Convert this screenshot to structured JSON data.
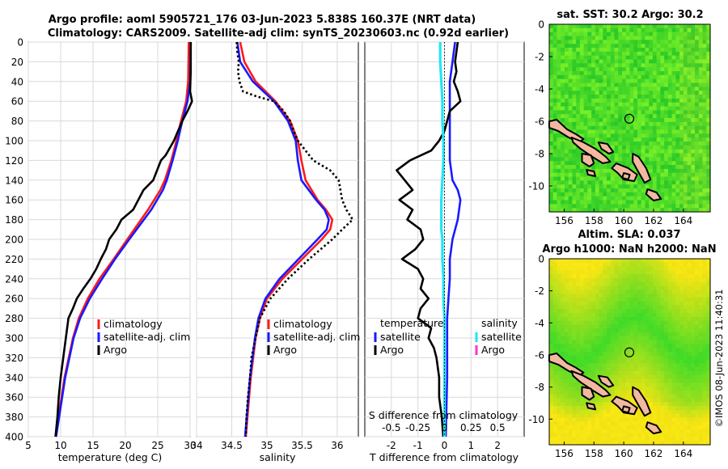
{
  "title": {
    "line1": "Argo profile: aoml 5905721_176 03-Jun-2023 5.838S 160.37E (NRT data)",
    "line2": "Climatology: CARS2009. Satellite-adj clim: synTS_20230603.nc (0.92d earlier)"
  },
  "colors": {
    "climatology": "#ff1a1a",
    "satellite": "#1a1aff",
    "argo": "#000000",
    "sat_salinity": "#22e5f5",
    "argo_salinity": "#ff33cc",
    "land": "#f2b8a0"
  },
  "legend": {
    "climatology": "climatology",
    "satellite": "satellite-adj. clim",
    "argo": "Argo",
    "temperature": "temperature",
    "salinity": "salinity",
    "sat_short": "satellite"
  },
  "map1": {
    "title": "sat. SST: 30.2 Argo: 30.2"
  },
  "map2": {
    "title1": "Altim. SLA: 0.037",
    "title2": "Argo h1000: NaN h2000: NaN"
  },
  "watermark": "©IMOS 08-Jun-2023 11:40:31",
  "chart_data": [
    {
      "type": "line",
      "name": "temperature",
      "xlabel": "temperature (deg C)",
      "ylabel": "",
      "xlim": [
        5,
        30
      ],
      "ylim": [
        400,
        0
      ],
      "xticks": [
        5,
        10,
        15,
        20,
        25,
        30
      ],
      "yticks": [
        0,
        20,
        40,
        60,
        80,
        100,
        120,
        140,
        160,
        180,
        200,
        220,
        240,
        260,
        280,
        300,
        320,
        340,
        360,
        380,
        400
      ],
      "series": [
        {
          "name": "climatology",
          "depth": [
            0,
            40,
            60,
            80,
            100,
            120,
            140,
            150,
            170,
            200,
            220,
            240,
            260,
            280,
            300,
            340,
            400
          ],
          "values": [
            29.8,
            29.7,
            29.4,
            28.6,
            27.9,
            27.1,
            26.1,
            25.4,
            23.5,
            20.3,
            18.2,
            16.0,
            14.2,
            12.8,
            11.9,
            10.6,
            9.2
          ]
        },
        {
          "name": "satellite-adj. clim",
          "depth": [
            0,
            40,
            60,
            80,
            100,
            120,
            140,
            150,
            170,
            200,
            220,
            240,
            260,
            280,
            300,
            340,
            400
          ],
          "values": [
            30.1,
            30.0,
            29.6,
            28.8,
            28.1,
            27.3,
            26.4,
            25.8,
            24.0,
            20.6,
            18.4,
            16.4,
            14.5,
            13.0,
            12.0,
            10.7,
            9.3
          ]
        },
        {
          "name": "Argo",
          "depth": [
            0,
            30,
            50,
            60,
            70,
            80,
            100,
            115,
            120,
            140,
            150,
            160,
            170,
            180,
            190,
            200,
            210,
            220,
            230,
            240,
            250,
            260,
            270,
            280,
            300,
            320,
            340,
            360,
            380,
            400
          ],
          "values": [
            30.1,
            30.1,
            30.0,
            30.3,
            29.6,
            28.8,
            27.5,
            26.2,
            25.5,
            24.3,
            22.8,
            22.0,
            21.2,
            19.4,
            18.6,
            17.5,
            17.0,
            16.2,
            15.5,
            14.6,
            13.5,
            12.5,
            11.9,
            11.2,
            10.8,
            10.4,
            10.0,
            9.7,
            9.5,
            9.2
          ]
        }
      ]
    },
    {
      "type": "line",
      "name": "salinity",
      "xlabel": "salinity",
      "ylabel": "",
      "xlim": [
        34,
        36.3
      ],
      "ylim": [
        400,
        0
      ],
      "xticks": [
        34,
        34.5,
        35,
        35.5,
        36
      ],
      "series": [
        {
          "name": "climatology",
          "depth": [
            0,
            20,
            40,
            60,
            80,
            100,
            120,
            140,
            160,
            170,
            180,
            190,
            200,
            220,
            240,
            260,
            280,
            300,
            340,
            400
          ],
          "values": [
            34.62,
            34.68,
            34.84,
            35.12,
            35.33,
            35.44,
            35.49,
            35.55,
            35.72,
            35.84,
            35.93,
            35.9,
            35.78,
            35.5,
            35.22,
            35.0,
            34.9,
            34.84,
            34.77,
            34.7
          ]
        },
        {
          "name": "satellite-adj. clim",
          "depth": [
            0,
            20,
            40,
            60,
            80,
            100,
            120,
            140,
            160,
            170,
            180,
            190,
            200,
            220,
            240,
            260,
            280,
            300,
            340,
            400
          ],
          "values": [
            34.58,
            34.62,
            34.8,
            35.1,
            35.3,
            35.41,
            35.44,
            35.49,
            35.7,
            35.82,
            35.88,
            35.85,
            35.72,
            35.45,
            35.18,
            34.98,
            34.88,
            34.83,
            34.76,
            34.69
          ]
        },
        {
          "name": "Argo",
          "depth": [
            0,
            10,
            20,
            30,
            40,
            50,
            55,
            60,
            70,
            80,
            90,
            100,
            120,
            130,
            140,
            160,
            170,
            180,
            190,
            200,
            220,
            240,
            260,
            280,
            300,
            320,
            340,
            360,
            380,
            400
          ],
          "values": [
            34.57,
            34.58,
            34.6,
            34.59,
            34.61,
            34.66,
            34.85,
            35.1,
            35.24,
            35.33,
            35.38,
            35.44,
            35.66,
            35.9,
            36.02,
            36.07,
            36.13,
            36.22,
            36.07,
            35.93,
            35.6,
            35.3,
            35.05,
            34.9,
            34.84,
            34.78,
            34.76,
            34.73,
            34.71,
            34.7
          ]
        }
      ]
    },
    {
      "type": "line",
      "name": "difference from climatology",
      "xlabel": "T difference from climatology",
      "xlabel_top": "S difference from climatology",
      "xlim": [
        -3,
        3
      ],
      "ylim": [
        400,
        0
      ],
      "xticks": [
        -2,
        -1,
        0,
        1,
        2
      ],
      "xticks_top": [
        -0.5,
        -0.25,
        0,
        0.25,
        0.5
      ],
      "xticks_top_labels": [
        "-0.5",
        "-0.25",
        "0",
        "0.25",
        "0.5"
      ],
      "series": [
        {
          "name": "T satellite",
          "depth": [
            0,
            20,
            40,
            60,
            80,
            100,
            120,
            140,
            150,
            160,
            180,
            200,
            220,
            240,
            260,
            280,
            300,
            340,
            400
          ],
          "values": [
            0.4,
            0.3,
            0.2,
            0.2,
            0.2,
            0.2,
            0.2,
            0.3,
            0.5,
            0.6,
            0.5,
            0.3,
            0.2,
            0.2,
            0.15,
            0.1,
            0.1,
            0.1,
            0.05
          ]
        },
        {
          "name": "T Argo",
          "depth": [
            0,
            20,
            30,
            40,
            50,
            60,
            70,
            80,
            90,
            100,
            110,
            120,
            130,
            140,
            150,
            160,
            170,
            180,
            190,
            200,
            210,
            220,
            230,
            240,
            250,
            260,
            270,
            280,
            290,
            300,
            310,
            320,
            340,
            360,
            380,
            400
          ],
          "values": [
            0.5,
            0.4,
            0.45,
            0.35,
            0.5,
            0.6,
            0.2,
            0.1,
            0.0,
            -0.2,
            -0.5,
            -1.3,
            -1.8,
            -1.5,
            -1.2,
            -1.7,
            -1.2,
            -1.4,
            -0.9,
            -0.8,
            -1.1,
            -1.6,
            -1.0,
            -0.8,
            -0.9,
            -0.6,
            -0.9,
            -1.0,
            -0.5,
            -0.6,
            -0.4,
            -0.3,
            -0.2,
            -0.2,
            -0.1,
            -0.05
          ]
        },
        {
          "name": "S satellite",
          "depth": [
            0,
            20,
            40,
            60,
            80,
            100,
            120,
            140,
            160,
            180,
            190,
            200,
            220,
            240,
            260,
            280,
            300,
            340,
            400
          ],
          "values": [
            -0.04,
            -0.04,
            -0.03,
            -0.02,
            -0.02,
            -0.01,
            -0.01,
            -0.02,
            -0.03,
            -0.03,
            -0.03,
            -0.02,
            -0.02,
            -0.01,
            -0.01,
            0.0,
            0.0,
            0.0,
            0.0
          ]
        }
      ]
    }
  ],
  "maps": {
    "lon_ticks": [
      156,
      158,
      160,
      162,
      164
    ],
    "lat_ticks": [
      0,
      -2,
      -4,
      -6,
      -8,
      -10
    ],
    "lon_range": [
      155,
      165.8
    ],
    "lat_range": [
      0,
      -11.6
    ],
    "argo_position": {
      "lon": 160.37,
      "lat": -5.838
    }
  }
}
